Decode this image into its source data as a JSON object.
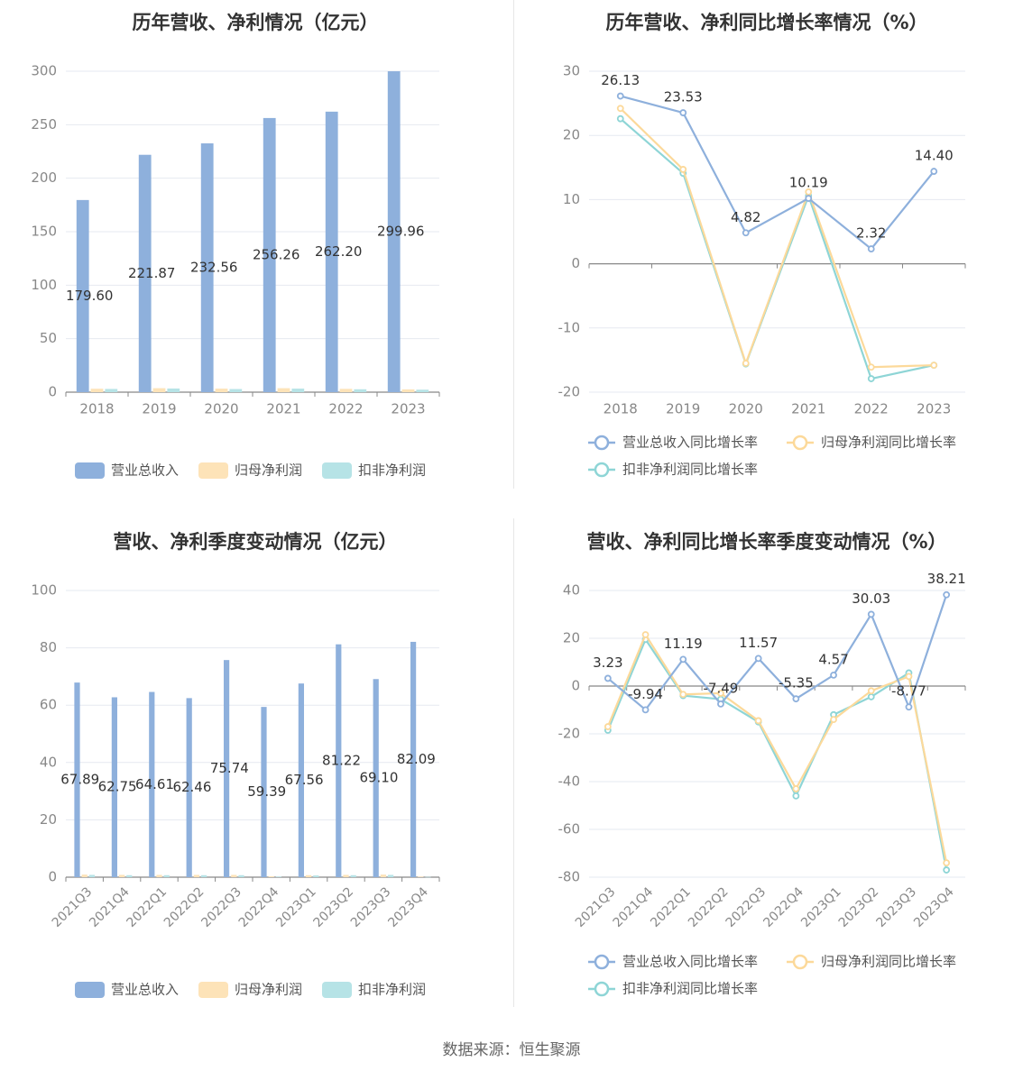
{
  "source": "数据来源：恒生聚源",
  "chart_data": [
    {
      "type": "bar",
      "title": "历年营收、净利情况（亿元）",
      "categories": [
        "2018",
        "2019",
        "2020",
        "2021",
        "2022",
        "2023"
      ],
      "ylim": [
        0,
        300
      ],
      "yticks": [
        0,
        50,
        100,
        150,
        200,
        250,
        300
      ],
      "series": [
        {
          "name": "营业总收入",
          "color": "#8eb0dc",
          "values": [
            179.6,
            221.87,
            232.56,
            256.26,
            262.2,
            299.96
          ],
          "labels": [
            "179.60",
            "221.87",
            "232.56",
            "256.26",
            "262.20",
            "299.96"
          ]
        },
        {
          "name": "归母净利润",
          "color": "#fde3b8",
          "values": [
            3.2,
            3.7,
            3.3,
            3.7,
            3.1,
            2.6
          ]
        },
        {
          "name": "扣非净利润",
          "color": "#b6e3e6",
          "values": [
            3.0,
            3.4,
            2.9,
            3.3,
            2.7,
            2.3
          ]
        }
      ],
      "legend": "bottom",
      "grid": true
    },
    {
      "type": "line",
      "title": "历年营收、净利同比增长率情况（%）",
      "categories": [
        "2018",
        "2019",
        "2020",
        "2021",
        "2022",
        "2023"
      ],
      "ylim": [
        -20,
        30
      ],
      "yticks": [
        -20,
        -10,
        0,
        10,
        20,
        30
      ],
      "series": [
        {
          "name": "营业总收入同比增长率",
          "color": "#8eb0dc",
          "values": [
            26.13,
            23.53,
            4.82,
            10.19,
            2.32,
            14.4
          ],
          "labels": [
            "26.13",
            "23.53",
            "4.82",
            "10.19",
            "2.32",
            "14.40"
          ]
        },
        {
          "name": "归母净利润同比增长率",
          "color": "#fcd99a",
          "values": [
            24.2,
            14.7,
            -15.5,
            11.2,
            -16.1,
            -15.8
          ]
        },
        {
          "name": "扣非净利润同比增长率",
          "color": "#8ed5d6",
          "values": [
            22.6,
            14.1,
            -15.6,
            10.6,
            -17.9,
            -15.8
          ]
        }
      ],
      "legend": "bottom",
      "grid": true
    },
    {
      "type": "bar",
      "title": "营收、净利季度变动情况（亿元）",
      "categories": [
        "2021Q3",
        "2021Q4",
        "2022Q1",
        "2022Q2",
        "2022Q3",
        "2022Q4",
        "2023Q1",
        "2023Q2",
        "2023Q3",
        "2023Q4"
      ],
      "ylim": [
        0,
        100
      ],
      "yticks": [
        0,
        20,
        40,
        60,
        80,
        100
      ],
      "series": [
        {
          "name": "营业总收入",
          "color": "#8eb0dc",
          "values": [
            67.89,
            62.75,
            64.61,
            62.46,
            75.74,
            59.39,
            67.56,
            81.22,
            69.1,
            82.09
          ],
          "labels": [
            "67.89",
            "62.75",
            "64.61",
            "62.46",
            "75.74",
            "59.39",
            "67.56",
            "81.22",
            "69.10",
            "82.09"
          ]
        },
        {
          "name": "归母净利润",
          "color": "#fde3b8",
          "values": [
            0.9,
            0.8,
            0.8,
            0.8,
            0.8,
            0.3,
            0.7,
            0.8,
            0.9,
            0.2
          ]
        },
        {
          "name": "扣非净利润",
          "color": "#b6e3e6",
          "values": [
            0.8,
            0.7,
            0.7,
            0.7,
            0.7,
            0.2,
            0.6,
            0.7,
            0.8,
            0.1
          ]
        }
      ],
      "legend": "bottom",
      "grid": true
    },
    {
      "type": "line",
      "title": "营收、净利同比增长率季度变动情况（%）",
      "categories": [
        "2021Q3",
        "2021Q4",
        "2022Q1",
        "2022Q2",
        "2022Q3",
        "2022Q4",
        "2023Q1",
        "2023Q2",
        "2023Q3",
        "2023Q4"
      ],
      "ylim": [
        -80,
        40
      ],
      "yticks": [
        -80,
        -60,
        -40,
        -20,
        0,
        20,
        40
      ],
      "series": [
        {
          "name": "营业总收入同比增长率",
          "color": "#8eb0dc",
          "values": [
            3.23,
            -9.94,
            11.19,
            -7.49,
            11.57,
            -5.35,
            4.57,
            30.03,
            -8.77,
            38.21
          ],
          "labels": [
            "3.23",
            "-9.94",
            "11.19",
            "-7.49",
            "11.57",
            "-5.35",
            "4.57",
            "30.03",
            "-8.77",
            "38.21"
          ]
        },
        {
          "name": "归母净利润同比增长率",
          "color": "#fcd99a",
          "values": [
            -17.0,
            21.5,
            -3.5,
            -3.0,
            -14.5,
            -43.0,
            -14.0,
            -2.0,
            4.0,
            -74.0
          ]
        },
        {
          "name": "扣非净利润同比增长率",
          "color": "#8ed5d6",
          "values": [
            -18.5,
            19.5,
            -4.0,
            -5.5,
            -15.0,
            -46.0,
            -12.0,
            -4.5,
            5.5,
            -77.0
          ]
        }
      ],
      "legend": "bottom",
      "grid": true
    }
  ]
}
